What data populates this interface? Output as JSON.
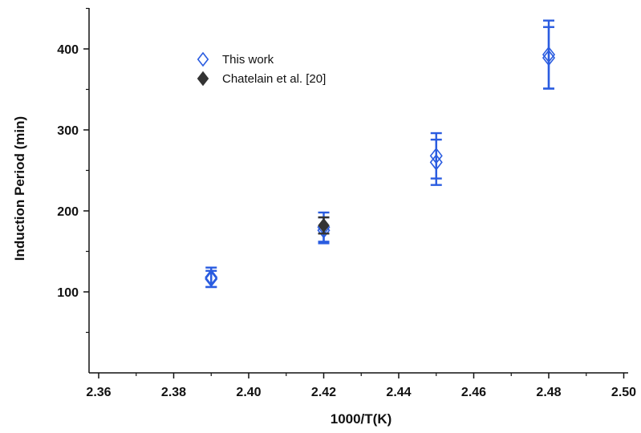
{
  "chart_data": {
    "type": "scatter",
    "xlabel": "1000/T(K)",
    "ylabel": "Induction Period (min)",
    "xlim": [
      2.36,
      2.5
    ],
    "ylim": [
      0,
      450
    ],
    "x_ticks": [
      "2.36",
      "2.38",
      "2.40",
      "2.42",
      "2.44",
      "2.46",
      "2.48",
      "2.50"
    ],
    "y_ticks": [
      "100",
      "200",
      "300",
      "400"
    ],
    "grid": false,
    "legend_position": "upper-left",
    "series": [
      {
        "name": "This work",
        "marker": "open-diamond",
        "color": "#2a5ce0",
        "points": [
          {
            "x": 2.39,
            "y": 118,
            "err": 12
          },
          {
            "x": 2.39,
            "y": 116,
            "err": 10
          },
          {
            "x": 2.42,
            "y": 180,
            "err": 18
          },
          {
            "x": 2.42,
            "y": 176,
            "err": 16
          },
          {
            "x": 2.45,
            "y": 268,
            "err": 28
          },
          {
            "x": 2.45,
            "y": 260,
            "err": 28
          },
          {
            "x": 2.48,
            "y": 393,
            "err": 42
          },
          {
            "x": 2.48,
            "y": 389,
            "err": 38
          }
        ]
      },
      {
        "name": "Chatelain et al. [20]",
        "marker": "filled-diamond",
        "color": "#333333",
        "points": [
          {
            "x": 2.42,
            "y": 182,
            "err": 10
          }
        ]
      }
    ]
  }
}
